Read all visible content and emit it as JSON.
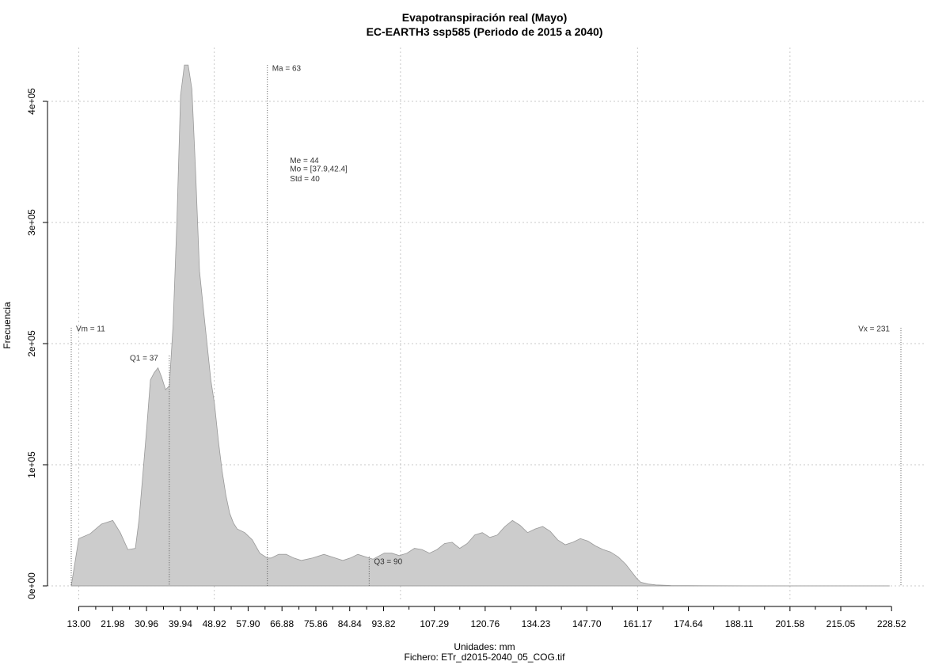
{
  "chart_data": {
    "type": "area",
    "title": "Evapotranspiración real (Mayo)",
    "subtitle": "EC-EARTH3 ssp585 (Periodo de 2015 a 2040)",
    "xlabel": "Unidades: mm",
    "ylabel": "Frecuencia",
    "caption": "Fichero: ETr_d2015-2040_05_COG.tif",
    "xlim": [
      11,
      231
    ],
    "ylim": [
      0,
      430000
    ],
    "grid": true,
    "fill_color": "#cccccc",
    "stroke_color": "#999999",
    "x_ticks": [
      {
        "value": 13.0,
        "label": "13.00"
      },
      {
        "value": 21.98,
        "label": "21.98"
      },
      {
        "value": 30.96,
        "label": "30.96"
      },
      {
        "value": 39.94,
        "label": "39.94"
      },
      {
        "value": 48.92,
        "label": "48.92"
      },
      {
        "value": 57.9,
        "label": "57.90"
      },
      {
        "value": 66.88,
        "label": "66.88"
      },
      {
        "value": 75.86,
        "label": "75.86"
      },
      {
        "value": 84.84,
        "label": "84.84"
      },
      {
        "value": 93.82,
        "label": "93.82"
      },
      {
        "value": 107.29,
        "label": "107.29"
      },
      {
        "value": 120.76,
        "label": "120.76"
      },
      {
        "value": 134.23,
        "label": "134.23"
      },
      {
        "value": 147.7,
        "label": "147.70"
      },
      {
        "value": 161.17,
        "label": "161.17"
      },
      {
        "value": 174.64,
        "label": "174.64"
      },
      {
        "value": 188.11,
        "label": "188.11"
      },
      {
        "value": 201.58,
        "label": "201.58"
      },
      {
        "value": 215.05,
        "label": "215.05"
      },
      {
        "value": 228.52,
        "label": "228.52"
      }
    ],
    "y_ticks": [
      {
        "value": 0,
        "label": "0e+00"
      },
      {
        "value": 100000,
        "label": "1e+05"
      },
      {
        "value": 200000,
        "label": "2e+05"
      },
      {
        "value": 300000,
        "label": "3e+05"
      },
      {
        "value": 400000,
        "label": "4e+05"
      }
    ],
    "x_gridlines": [
      13.0,
      48.92,
      98.3,
      161.17,
      201.58
    ],
    "series": [
      {
        "x": [
          11,
          13,
          16,
          19,
          22,
          24,
          26,
          28,
          29,
          31,
          32,
          33,
          34,
          35,
          36,
          37,
          38,
          39,
          40,
          41,
          42,
          43,
          44,
          45,
          46,
          47,
          48,
          49,
          50,
          51,
          52,
          53,
          54,
          55,
          57,
          59,
          61,
          63,
          64,
          66,
          68,
          70,
          72,
          75,
          78,
          80,
          83,
          85,
          87,
          89,
          91,
          94,
          96,
          98,
          100,
          102,
          104,
          106,
          108,
          110,
          112,
          114,
          116,
          118,
          120,
          122,
          124,
          126,
          128,
          130,
          132,
          134,
          136,
          138,
          140,
          142,
          144,
          146,
          148,
          150,
          152,
          154,
          156,
          158,
          160,
          161,
          162,
          164,
          166,
          170,
          180,
          200,
          220,
          228
        ],
        "y": [
          0,
          39000,
          43000,
          51000,
          54000,
          44000,
          30000,
          31000,
          55000,
          130000,
          170000,
          176000,
          180000,
          172000,
          162000,
          165000,
          215000,
          300000,
          405000,
          430000,
          430000,
          410000,
          340000,
          260000,
          230000,
          200000,
          170000,
          150000,
          120000,
          95000,
          75000,
          60000,
          52000,
          47000,
          44000,
          38000,
          27000,
          23000,
          23000,
          26000,
          26000,
          23000,
          21000,
          23000,
          26000,
          24000,
          21000,
          23000,
          26000,
          24000,
          22000,
          27000,
          27000,
          25000,
          27000,
          31000,
          30000,
          27000,
          30000,
          35000,
          36000,
          31000,
          35000,
          42000,
          44000,
          40000,
          42000,
          49000,
          54000,
          50000,
          44000,
          47000,
          49000,
          45000,
          38000,
          34000,
          36000,
          39000,
          37000,
          33000,
          30000,
          28000,
          24000,
          18000,
          10000,
          6000,
          3000,
          1500,
          800,
          300,
          100,
          0,
          0,
          0
        ]
      }
    ],
    "annotations": [
      {
        "label": "Vm = 11",
        "x": 11,
        "line_top": 213000,
        "text_y": 212000,
        "anchor": "start"
      },
      {
        "label": "Q1 = 37",
        "x": 37,
        "line_top": 190000,
        "text_y": 188000,
        "anchor": "end"
      },
      {
        "label": "Ma = 63",
        "x": 63,
        "line_top": 430000,
        "text_y": 427000,
        "anchor": "start"
      },
      {
        "label": "Q3 = 90",
        "x": 90,
        "line_top": 24000,
        "text_y": 20000,
        "anchor": "start"
      },
      {
        "label": "Vx = 231",
        "x": 231,
        "line_top": 213000,
        "text_y": 212000,
        "anchor": "end"
      }
    ],
    "stats": {
      "x": 69,
      "lines": [
        "Me = 44",
        "Mo = [37.9,42.4]",
        "Std = 40"
      ],
      "y_values": [
        351000,
        344000,
        336000
      ]
    }
  }
}
